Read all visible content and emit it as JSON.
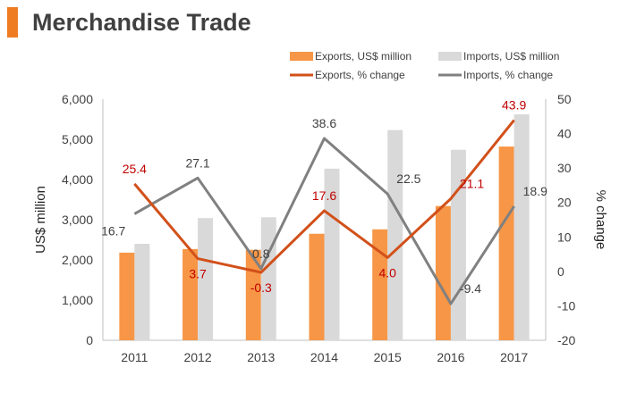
{
  "title": "Merchandise Trade",
  "colors": {
    "accent": "#F07C22",
    "exports_bar": "#F79646",
    "imports_bar": "#D9D9D9",
    "exports_line": "#D2501A",
    "imports_line": "#808080",
    "exports_label": "#C00000",
    "imports_label": "#404040"
  },
  "chart_data": {
    "type": "bar",
    "categories": [
      "2011",
      "2012",
      "2013",
      "2014",
      "2015",
      "2016",
      "2017"
    ],
    "series": [
      {
        "name": "Exports, US$ million",
        "type": "bar",
        "axis": "left",
        "values": [
          2180,
          2270,
          2250,
          2650,
          2760,
          3340,
          4820
        ]
      },
      {
        "name": "Imports, US$ million",
        "type": "bar",
        "axis": "left",
        "values": [
          2400,
          3040,
          3060,
          4270,
          5230,
          4740,
          5620
        ]
      },
      {
        "name": "Exports, % change",
        "type": "line",
        "axis": "right",
        "values": [
          25.4,
          3.7,
          -0.3,
          17.6,
          4.0,
          21.1,
          43.9
        ],
        "labels": [
          "25.4",
          "3.7",
          "-0.3",
          "17.6",
          "4.0",
          "21.1",
          "43.9"
        ]
      },
      {
        "name": "Imports, % change",
        "type": "line",
        "axis": "right",
        "values": [
          16.7,
          27.1,
          0.8,
          38.6,
          22.5,
          -9.4,
          18.9
        ],
        "labels": [
          "16.7",
          "27.1",
          "0.8",
          "38.6",
          "22.5",
          "-9.4",
          "18.9"
        ]
      }
    ],
    "ylabel": "US$ million",
    "ylim": [
      0,
      6000
    ],
    "yticks": [
      "0",
      "1,000",
      "2,000",
      "3,000",
      "4,000",
      "5,000",
      "6,000"
    ],
    "ylabel_right": "% change",
    "ylim_right": [
      -20,
      50
    ],
    "yticks_right": [
      "-20",
      "-10",
      "0",
      "10",
      "20",
      "30",
      "40",
      "50"
    ],
    "grid": false,
    "legend": "top"
  }
}
